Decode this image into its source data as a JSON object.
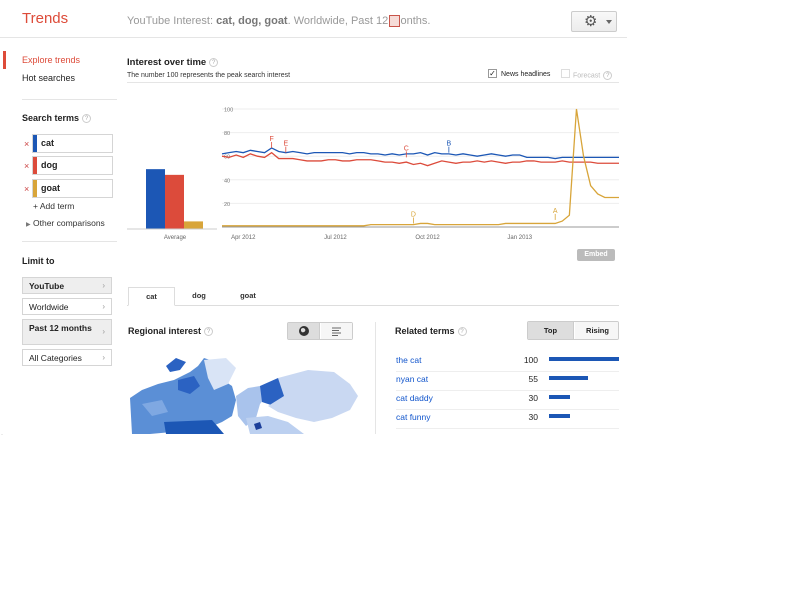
{
  "header": {
    "logo": "Trends",
    "subtitle_prefix": "YouTube Interest: ",
    "subtitle_terms": "cat, dog, goat",
    "subtitle_suffix": ". Worldwide, Past 12 months.",
    "settings_icon": "gear-icon"
  },
  "sidebar": {
    "nav": [
      "Explore trends",
      "Hot searches"
    ],
    "search_terms_title": "Search terms",
    "terms": [
      {
        "label": "cat",
        "color": "#1c57b5"
      },
      {
        "label": "dog",
        "color": "#dc4b3b"
      },
      {
        "label": "goat",
        "color": "#d8a53a"
      }
    ],
    "add_term": "+ Add term",
    "other_comparisons": "Other comparisons",
    "limit_title": "Limit to",
    "limits": [
      "YouTube",
      "Worldwide",
      "Past 12 months",
      "All Categories"
    ]
  },
  "main": {
    "title": "Interest over time",
    "note": "The number 100 represents the peak search interest",
    "news_headlines": "News headlines",
    "forecast": "Forecast",
    "embed": "Embed",
    "tabs": [
      "cat",
      "dog",
      "goat"
    ],
    "regional_title": "Regional interest",
    "related_title": "Related terms",
    "related_toggle": [
      "Top",
      "Rising"
    ],
    "related": [
      {
        "term": "the cat",
        "value": 100
      },
      {
        "term": "nyan cat",
        "value": 55
      },
      {
        "term": "cat daddy",
        "value": 30
      },
      {
        "term": "cat funny",
        "value": 30
      }
    ]
  },
  "chart_data": {
    "type": "line",
    "average": {
      "label": "Average",
      "values": [
        {
          "name": "cat",
          "value": 63
        },
        {
          "name": "dog",
          "value": 57
        },
        {
          "name": "goat",
          "value": 8
        }
      ]
    },
    "x_ticks": [
      {
        "label": "Apr 2012",
        "x": 3
      },
      {
        "label": "Jul 2012",
        "x": 16
      },
      {
        "label": "Oct 2012",
        "x": 29
      },
      {
        "label": "Jan 2013",
        "x": 42
      }
    ],
    "y_ticks": [
      100,
      80,
      60,
      40,
      20
    ],
    "ylim": [
      0,
      100
    ],
    "xlim": [
      0,
      56
    ],
    "series": [
      {
        "name": "cat",
        "color": "#1c57b5",
        "values": [
          62,
          63,
          64,
          63,
          65,
          64,
          63,
          67,
          64,
          63,
          64,
          63,
          62,
          63,
          63,
          63,
          63,
          63,
          62,
          63,
          63,
          62,
          62,
          61,
          62,
          61,
          62,
          62,
          63,
          61,
          63,
          62,
          62,
          61,
          62,
          61,
          60,
          61,
          62,
          61,
          60,
          61,
          61,
          59,
          59,
          59,
          59,
          58,
          59,
          59,
          59,
          59,
          59,
          59,
          59,
          59,
          59
        ]
      },
      {
        "name": "dog",
        "color": "#dc4b3b",
        "values": [
          60,
          59,
          61,
          59,
          62,
          60,
          59,
          63,
          58,
          58,
          58,
          57,
          56,
          56,
          56,
          57,
          57,
          56,
          56,
          57,
          57,
          57,
          56,
          55,
          55,
          54,
          55,
          53,
          54,
          52,
          54,
          56,
          55,
          54,
          55,
          55,
          56,
          55,
          56,
          55,
          54,
          55,
          55,
          56,
          56,
          55,
          55,
          55,
          56,
          55,
          55,
          55,
          55,
          54,
          54,
          54,
          54
        ]
      },
      {
        "name": "goat",
        "color": "#d8a53a",
        "values": [
          1,
          1,
          1,
          1,
          1,
          1,
          1,
          1,
          1,
          1,
          1,
          1,
          1,
          1,
          1,
          1,
          1,
          1,
          1,
          1,
          1,
          2,
          2,
          2,
          2,
          2,
          2,
          2,
          3,
          3,
          2,
          2,
          2,
          2,
          2,
          2,
          2,
          2,
          2,
          2,
          3,
          3,
          3,
          3,
          3,
          3,
          3,
          3,
          5,
          10,
          100,
          60,
          35,
          28,
          25,
          25,
          25
        ]
      }
    ],
    "annotations": [
      {
        "label": "F",
        "x": 7,
        "y": 67,
        "color": "#dc4b3b"
      },
      {
        "label": "E",
        "x": 9,
        "y": 63,
        "color": "#dc4b3b"
      },
      {
        "label": "C",
        "x": 26,
        "y": 59,
        "color": "#dc4b3b"
      },
      {
        "label": "B",
        "x": 32,
        "y": 63,
        "color": "#1c57b5"
      },
      {
        "label": "D",
        "x": 27,
        "y": 3,
        "color": "#d8a53a"
      },
      {
        "label": "A",
        "x": 47,
        "y": 6,
        "color": "#d8a53a"
      }
    ]
  }
}
